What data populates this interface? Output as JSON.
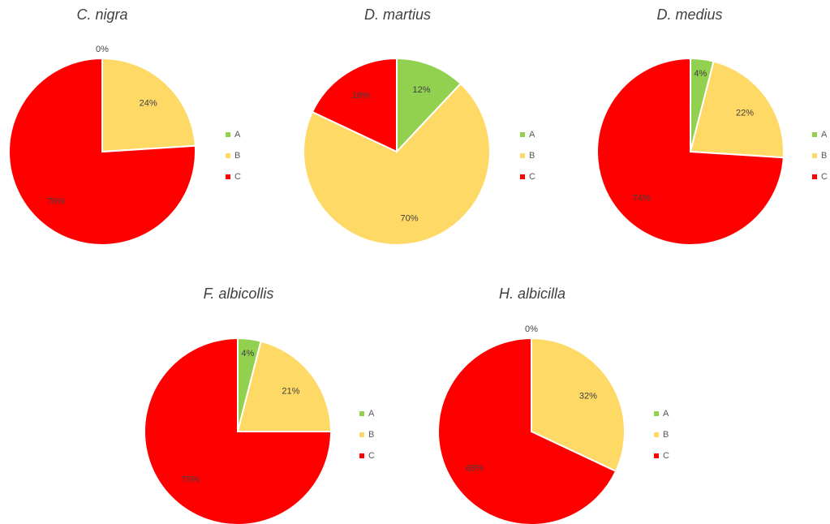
{
  "chart_data": [
    {
      "type": "pie",
      "title": "C. nigra",
      "categories": [
        "A",
        "B",
        "C"
      ],
      "values": [
        0,
        24,
        76
      ],
      "labels": [
        "0%",
        "24%",
        "76%"
      ],
      "legend": "right"
    },
    {
      "type": "pie",
      "title": "D. martius",
      "categories": [
        "A",
        "B",
        "C"
      ],
      "values": [
        12,
        70,
        18
      ],
      "labels": [
        "12%",
        "70%",
        "18%"
      ],
      "legend": "right"
    },
    {
      "type": "pie",
      "title": "D. medius",
      "categories": [
        "A",
        "B",
        "C"
      ],
      "values": [
        4,
        22,
        74
      ],
      "labels": [
        "4%",
        "22%",
        "74%"
      ],
      "legend": "right"
    },
    {
      "type": "pie",
      "title": "F. albicollis",
      "categories": [
        "A",
        "B",
        "C"
      ],
      "values": [
        4,
        21,
        75
      ],
      "labels": [
        "4%",
        "21%",
        "75%"
      ],
      "legend": "right"
    },
    {
      "type": "pie",
      "title": "H. albicilla",
      "categories": [
        "A",
        "B",
        "C"
      ],
      "values": [
        0,
        32,
        68
      ],
      "labels": [
        "0%",
        "32%",
        "68%"
      ],
      "legend": "right"
    }
  ],
  "colors": {
    "A": "#92d050",
    "B": "#ffd966",
    "C": "#ff0000"
  }
}
